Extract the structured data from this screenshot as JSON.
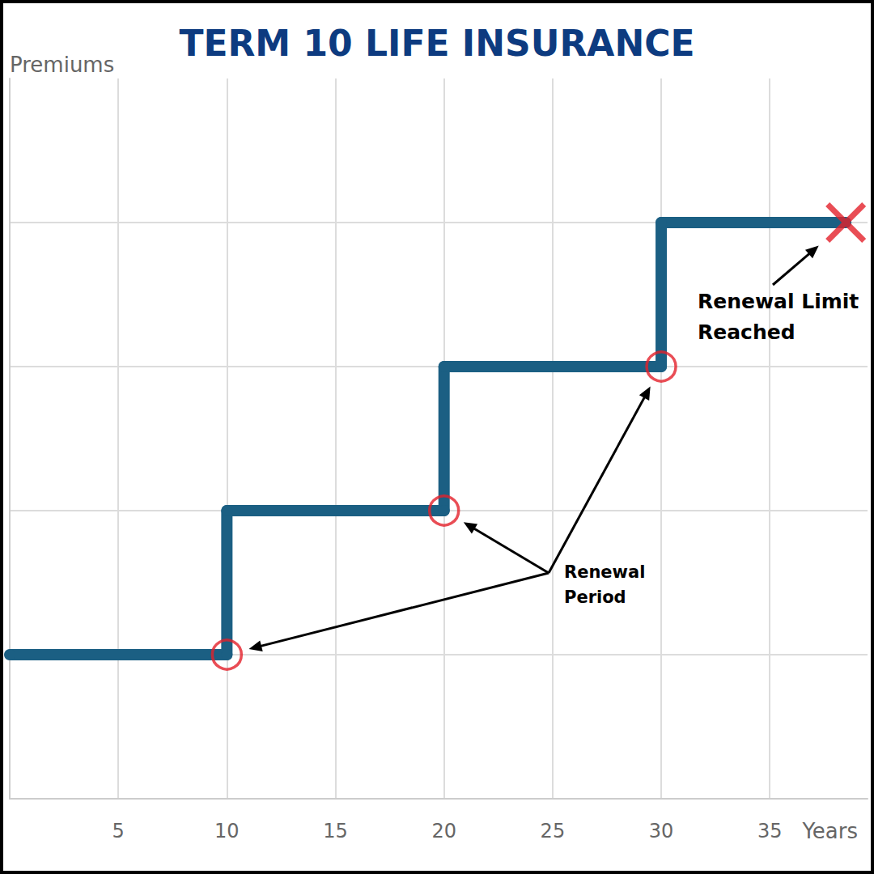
{
  "chart_data": {
    "type": "line",
    "title": "TERM 10 LIFE INSURANCE",
    "y_label": "Premiums",
    "x_label": "Years",
    "x": [
      0,
      10,
      10,
      20,
      20,
      30,
      30,
      38.5
    ],
    "values": [
      1,
      1,
      2,
      2,
      3,
      3,
      4,
      4
    ],
    "color": "#1b5f83",
    "marker": "circle",
    "line_style": "solid",
    "xlim": [
      0,
      39.5
    ],
    "ylim": [
      0,
      5
    ],
    "xticks": [
      5,
      10,
      15,
      20,
      25,
      30,
      35
    ],
    "yticks": [
      0,
      1,
      2,
      3,
      4
    ],
    "grid": true,
    "tick_labels": "x",
    "annotations": [
      {
        "text": "Renewal\nPeriod",
        "x": [
          10,
          20,
          30
        ],
        "y": [
          1,
          2,
          3
        ],
        "marker": "circle",
        "color": "#e3202a"
      },
      {
        "text": "Renewal Limit\nReached",
        "x": [
          38.5
        ],
        "y": [
          4
        ],
        "marker": "x",
        "color": "#e3202a"
      }
    ]
  }
}
